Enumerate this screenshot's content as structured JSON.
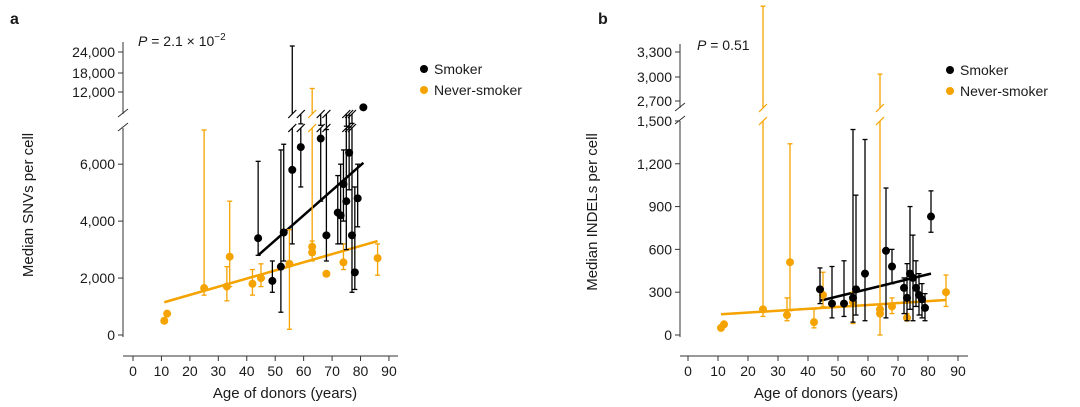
{
  "colors": {
    "smoker": "#000000",
    "never_smoker": "#F5A300",
    "axis": "#333333"
  },
  "chart_data": [
    {
      "panel_label": "a",
      "type": "scatter",
      "annotation_prefix": "P",
      "annotation_value": " = 2.1 × 10",
      "annotation_exp": "−2",
      "xlabel": "Age of donors (years)",
      "ylabel": "Median SNVs per cell",
      "xlim": [
        0,
        90
      ],
      "x_ticks": [
        0,
        10,
        20,
        30,
        40,
        50,
        60,
        70,
        80,
        90
      ],
      "y_ticks_lower": [
        "0",
        "2,000",
        "4,000",
        "6,000"
      ],
      "y_ticks_upper": [
        "12,000",
        "18,000",
        "24,000"
      ],
      "axis_break": true,
      "legend_position": "top-right",
      "legend": [
        {
          "key": "smoker",
          "label": "Smoker"
        },
        {
          "key": "never_smoker",
          "label": "Never-smoker"
        }
      ],
      "series": [
        {
          "key": "smoker",
          "name": "Smoker",
          "points": [
            {
              "x": 44,
              "y": 3400,
              "lo": 2800,
              "hi": 6100
            },
            {
              "x": 49,
              "y": 1900,
              "lo": 1500,
              "hi": 2600
            },
            {
              "x": 52,
              "y": 2400,
              "lo": 800,
              "hi": 6500
            },
            {
              "x": 53,
              "y": 3600,
              "lo": 2600,
              "hi": 6700
            },
            {
              "x": 56,
              "y": 5800,
              "lo": 3200,
              "hi": 25000
            },
            {
              "x": 59,
              "y": 6600,
              "lo": 5200,
              "hi": 8500
            },
            {
              "x": 66,
              "y": 6900,
              "lo": 4700,
              "hi": 8200
            },
            {
              "x": 68,
              "y": 3500,
              "lo": 2600,
              "hi": 7300
            },
            {
              "x": 72,
              "y": 4300,
              "lo": 3200,
              "hi": 5600
            },
            {
              "x": 73,
              "y": 4200,
              "lo": 3200,
              "hi": 6000
            },
            {
              "x": 74,
              "y": 5300,
              "lo": 4000,
              "hi": 6500
            },
            {
              "x": 75,
              "y": 4700,
              "lo": 3000,
              "hi": 8000
            },
            {
              "x": 76,
              "y": 6400,
              "lo": 5100,
              "hi": 7800
            },
            {
              "x": 77,
              "y": 3500,
              "lo": 1500,
              "hi": 8600
            },
            {
              "x": 78,
              "y": 2200,
              "lo": 1600,
              "hi": 5200
            },
            {
              "x": 79,
              "y": 4800,
              "lo": 3800,
              "hi": 6000
            },
            {
              "x": 81,
              "y": 12000,
              "lo": 12000,
              "hi": 12000
            }
          ],
          "fit": {
            "x0": 44,
            "y0": 2800,
            "x1": 81,
            "y1": 6050
          }
        },
        {
          "key": "never_smoker",
          "name": "Never-smoker",
          "points": [
            {
              "x": 11,
              "y": 500,
              "lo": 500,
              "hi": 500
            },
            {
              "x": 12,
              "y": 750,
              "lo": 750,
              "hi": 750
            },
            {
              "x": 25,
              "y": 1650,
              "lo": 1400,
              "hi": 7200
            },
            {
              "x": 33,
              "y": 1700,
              "lo": 1200,
              "hi": 2400
            },
            {
              "x": 34,
              "y": 2750,
              "lo": 1700,
              "hi": 4700
            },
            {
              "x": 42,
              "y": 1800,
              "lo": 1400,
              "hi": 2300
            },
            {
              "x": 45,
              "y": 2000,
              "lo": 1700,
              "hi": 2500
            },
            {
              "x": 55,
              "y": 2500,
              "lo": 200,
              "hi": 3700
            },
            {
              "x": 63,
              "y": 3100,
              "lo": 2800,
              "hi": 16000
            },
            {
              "x": 63,
              "y": 2900,
              "lo": 2600,
              "hi": 3300
            },
            {
              "x": 68,
              "y": 2150,
              "lo": 2150,
              "hi": 2150
            },
            {
              "x": 74,
              "y": 2550,
              "lo": 2300,
              "hi": 3200
            },
            {
              "x": 86,
              "y": 2700,
              "lo": 2100,
              "hi": 3200
            }
          ],
          "fit": {
            "x0": 11,
            "y0": 1150,
            "x1": 86,
            "y1": 3300
          }
        }
      ]
    },
    {
      "panel_label": "b",
      "type": "scatter",
      "annotation_prefix": "P",
      "annotation_value": " = 0.51",
      "annotation_exp": "",
      "xlabel": "Age of donors (years)",
      "ylabel": "Median INDELs per cell",
      "xlim": [
        0,
        90
      ],
      "x_ticks": [
        0,
        10,
        20,
        30,
        40,
        50,
        60,
        70,
        80,
        90
      ],
      "y_ticks_lower": [
        "0",
        "300",
        "600",
        "900",
        "1,200",
        "1,500"
      ],
      "y_ticks_upper": [
        "2,700",
        "3,000",
        "3,300"
      ],
      "axis_break": true,
      "legend_position": "top-right",
      "legend": [
        {
          "key": "smoker",
          "label": "Smoker"
        },
        {
          "key": "never_smoker",
          "label": "Never-smoker"
        }
      ],
      "series": [
        {
          "key": "smoker",
          "name": "Smoker",
          "points": [
            {
              "x": 44,
              "y": 320,
              "lo": 220,
              "hi": 470
            },
            {
              "x": 48,
              "y": 220,
              "lo": 120,
              "hi": 480
            },
            {
              "x": 52,
              "y": 220,
              "lo": 130,
              "hi": 520
            },
            {
              "x": 55,
              "y": 260,
              "lo": 90,
              "hi": 1440
            },
            {
              "x": 56,
              "y": 320,
              "lo": 140,
              "hi": 980
            },
            {
              "x": 59,
              "y": 430,
              "lo": 100,
              "hi": 1370
            },
            {
              "x": 66,
              "y": 590,
              "lo": 120,
              "hi": 1030
            },
            {
              "x": 68,
              "y": 480,
              "lo": 360,
              "hi": 600
            },
            {
              "x": 72,
              "y": 330,
              "lo": 150,
              "hi": 400
            },
            {
              "x": 73,
              "y": 260,
              "lo": 100,
              "hi": 500
            },
            {
              "x": 74,
              "y": 430,
              "lo": 180,
              "hi": 900
            },
            {
              "x": 75,
              "y": 400,
              "lo": 100,
              "hi": 700
            },
            {
              "x": 76,
              "y": 330,
              "lo": 200,
              "hi": 520
            },
            {
              "x": 77,
              "y": 280,
              "lo": 140,
              "hi": 430
            },
            {
              "x": 78,
              "y": 250,
              "lo": 120,
              "hi": 360
            },
            {
              "x": 79,
              "y": 190,
              "lo": 100,
              "hi": 290
            },
            {
              "x": 81,
              "y": 830,
              "lo": 720,
              "hi": 1010
            }
          ],
          "fit": {
            "x0": 44,
            "y0": 240,
            "x1": 81,
            "y1": 430
          }
        },
        {
          "key": "never_smoker",
          "name": "Never-smoker",
          "points": [
            {
              "x": 11,
              "y": 50,
              "lo": 50,
              "hi": 50
            },
            {
              "x": 12,
              "y": 75,
              "lo": 75,
              "hi": 75
            },
            {
              "x": 25,
              "y": 180,
              "lo": 130,
              "hi": 3300
            },
            {
              "x": 33,
              "y": 140,
              "lo": 100,
              "hi": 260
            },
            {
              "x": 34,
              "y": 510,
              "lo": 170,
              "hi": 1340
            },
            {
              "x": 42,
              "y": 90,
              "lo": 50,
              "hi": 180
            },
            {
              "x": 45,
              "y": 280,
              "lo": 200,
              "hi": 440
            },
            {
              "x": 55,
              "y": 230,
              "lo": 80,
              "hi": 300
            },
            {
              "x": 64,
              "y": 180,
              "lo": 0,
              "hi": 2870
            },
            {
              "x": 64,
              "y": 150,
              "lo": 130,
              "hi": 200
            },
            {
              "x": 68,
              "y": 200,
              "lo": 150,
              "hi": 260
            },
            {
              "x": 73,
              "y": 120,
              "lo": 100,
              "hi": 150
            },
            {
              "x": 86,
              "y": 300,
              "lo": 200,
              "hi": 420
            }
          ],
          "fit": {
            "x0": 11,
            "y0": 145,
            "x1": 86,
            "y1": 245
          }
        }
      ]
    }
  ]
}
